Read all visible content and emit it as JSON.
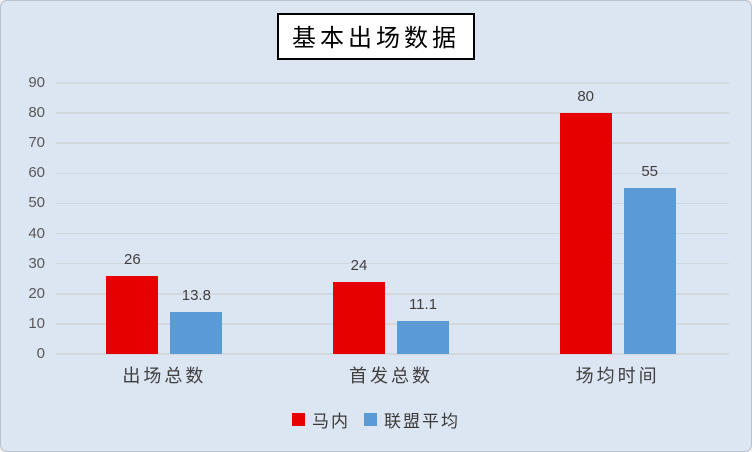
{
  "title": "基本出场数据",
  "legend": {
    "position": "bottom",
    "items": [
      {
        "label": "马内",
        "color": "#e60000"
      },
      {
        "label": "联盟平均",
        "color": "#5b9bd5"
      }
    ]
  },
  "chart_data": {
    "type": "bar",
    "title": "基本出场数据",
    "categories": [
      "出场总数",
      "首发总数",
      "场均时间"
    ],
    "series": [
      {
        "name": "马内",
        "color": "#e60000",
        "values": [
          26,
          24,
          80
        ],
        "labels": [
          "26",
          "24",
          "80"
        ]
      },
      {
        "name": "联盟平均",
        "color": "#5b9bd5",
        "values": [
          13.8,
          11.1,
          55
        ],
        "labels": [
          "13.8",
          "11.1",
          "55"
        ]
      }
    ],
    "xlabel": "",
    "ylabel": "",
    "ylim": [
      0,
      90
    ],
    "yticks": [
      0,
      10,
      20,
      30,
      40,
      50,
      60,
      70,
      80,
      90
    ],
    "grid": true,
    "data_labels": true,
    "legend_position": "bottom",
    "colors": {
      "background": "#dce5f2",
      "gridline": "#d3d8de",
      "tick_label": "#595959",
      "data_label": "#404040",
      "series_1": "#e60000",
      "series_2": "#5b9bd5"
    }
  }
}
